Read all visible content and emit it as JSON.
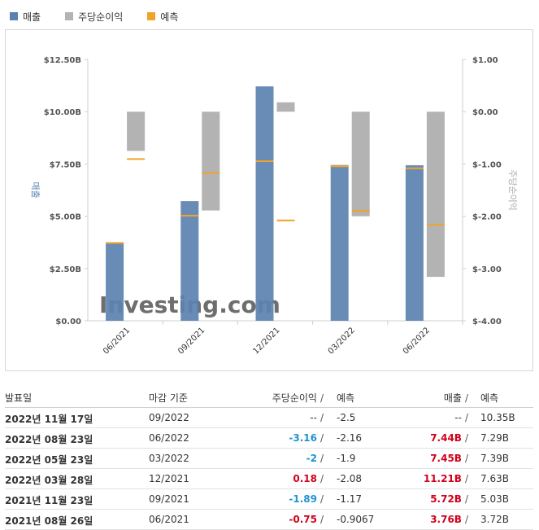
{
  "legend": {
    "revenue": {
      "label": "매출",
      "color": "#5b82b0"
    },
    "eps": {
      "label": "주당순이익",
      "color": "#b3b3b3"
    },
    "forecast": {
      "label": "예측",
      "color": "#f0a32b"
    }
  },
  "chart_data": {
    "type": "bar",
    "categories": [
      "06/2021",
      "09/2021",
      "12/2021",
      "03/2022",
      "06/2022"
    ],
    "revenue": {
      "label": "매출",
      "actual": [
        3.76,
        5.72,
        11.21,
        7.45,
        7.44
      ],
      "forecast": [
        3.72,
        5.03,
        7.63,
        7.39,
        7.29
      ]
    },
    "eps": {
      "label": "주당순이익",
      "actual": [
        -0.75,
        -1.89,
        0.18,
        -2.0,
        -3.16
      ],
      "forecast": [
        -0.9067,
        -1.17,
        -2.08,
        -1.9,
        -2.16
      ]
    },
    "y_left": {
      "label": "매출",
      "ticks": [
        "$0.00",
        "$2.50B",
        "$5.00B",
        "$7.50B",
        "$10.00B",
        "$12.50B"
      ],
      "range": [
        0,
        12.5
      ]
    },
    "y_right": {
      "label": "주당순이익",
      "ticks": [
        "$-4.00",
        "$-3.00",
        "$-2.00",
        "$-1.00",
        "$0.00",
        "$1.00"
      ],
      "range": [
        -4,
        1
      ]
    },
    "watermark": "Investing.com"
  },
  "table": {
    "headers": {
      "date": "발표일",
      "period": "마감 기준",
      "eps": "주당순이익",
      "eps_forecast": "예측",
      "revenue": "매출",
      "revenue_forecast": "예측"
    },
    "rows": [
      {
        "date": "2022년 11월 17일",
        "period": "09/2022",
        "eps": "--",
        "eps_class": "neutral",
        "eps_forecast": "-2.5",
        "revenue": "--",
        "revenue_class": "neutral",
        "revenue_forecast": "10.35B"
      },
      {
        "date": "2022년 08월 23일",
        "period": "06/2022",
        "eps": "-3.16",
        "eps_class": "neg",
        "eps_forecast": "-2.16",
        "revenue": "7.44B",
        "revenue_class": "pos",
        "revenue_forecast": "7.29B"
      },
      {
        "date": "2022년 05월 23일",
        "period": "03/2022",
        "eps": "-2",
        "eps_class": "neg",
        "eps_forecast": "-1.9",
        "revenue": "7.45B",
        "revenue_class": "pos",
        "revenue_forecast": "7.39B"
      },
      {
        "date": "2022년 03월 28일",
        "period": "12/2021",
        "eps": "0.18",
        "eps_class": "pos",
        "eps_forecast": "-2.08",
        "revenue": "11.21B",
        "revenue_class": "pos",
        "revenue_forecast": "7.63B"
      },
      {
        "date": "2021년 11월 23일",
        "period": "09/2021",
        "eps": "-1.89",
        "eps_class": "neg",
        "eps_forecast": "-1.17",
        "revenue": "5.72B",
        "revenue_class": "pos",
        "revenue_forecast": "5.03B"
      },
      {
        "date": "2021년 08월 26일",
        "period": "06/2021",
        "eps": "-0.75",
        "eps_class": "pos",
        "eps_forecast": "-0.9067",
        "revenue": "3.76B",
        "revenue_class": "pos",
        "revenue_forecast": "3.72B"
      }
    ]
  }
}
